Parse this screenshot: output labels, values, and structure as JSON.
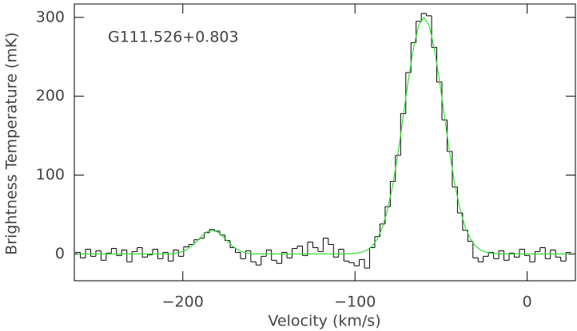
{
  "chart_data": {
    "type": "step",
    "xlabel": "Velocity (km/s)",
    "ylabel": "Brightness Temperature (mK)",
    "annotation": "G111.526+0.803",
    "xlim": [
      -263,
      28
    ],
    "ylim": [
      -34,
      317
    ],
    "xticks": [
      {
        "value": -200,
        "label": "−200"
      },
      {
        "value": -100,
        "label": "−100"
      },
      0
    ],
    "yticks": [
      0,
      100,
      200,
      300
    ],
    "x": [
      -261,
      -258,
      -255,
      -252,
      -249,
      -246,
      -243,
      -240,
      -237,
      -234,
      -231,
      -228,
      -225,
      -222,
      -219,
      -216,
      -213,
      -210,
      -207,
      -204,
      -201,
      -198,
      -195,
      -192,
      -189,
      -186,
      -183,
      -180,
      -177,
      -174,
      -171,
      -168,
      -165,
      -162,
      -159,
      -156,
      -153,
      -150,
      -147,
      -144,
      -141,
      -138,
      -135,
      -132,
      -129,
      -126,
      -123,
      -120,
      -117,
      -114,
      -111,
      -108,
      -105,
      -102,
      -99,
      -96,
      -93,
      -90,
      -87,
      -84,
      -81,
      -78,
      -75,
      -72,
      -69,
      -66,
      -63,
      -60,
      -57,
      -54,
      -51,
      -48,
      -45,
      -42,
      -39,
      -36,
      -33,
      -30,
      -27,
      -24,
      -21,
      -18,
      -15,
      -12,
      -9,
      -6,
      -3,
      0,
      3,
      6,
      9,
      12,
      15,
      18,
      21,
      24
    ],
    "series": [
      {
        "color": "#000000",
        "values": [
          2,
          -5,
          6,
          -3,
          4,
          -8,
          1,
          7,
          -2,
          5,
          -10,
          3,
          8,
          -4,
          -1,
          6,
          -6,
          2,
          -9,
          5,
          -3,
          9,
          12,
          18,
          20,
          27,
          31,
          29,
          24,
          17,
          8,
          2,
          -6,
          4,
          -10,
          -14,
          -3,
          5,
          -8,
          -12,
          2,
          -5,
          7,
          10,
          -2,
          15,
          8,
          3,
          20,
          12,
          -4,
          6,
          -9,
          -11,
          -15,
          -7,
          -18,
          8,
          22,
          38,
          60,
          92,
          125,
          178,
          230,
          268,
          295,
          305,
          302,
          262,
          218,
          170,
          130,
          85,
          52,
          30,
          16,
          -5,
          -10,
          -3,
          2,
          -6,
          4,
          -8,
          1,
          -4,
          6,
          -2,
          -10,
          3,
          8,
          -6,
          5,
          -4,
          -9,
          2
        ]
      },
      {
        "color": "#33dd33",
        "values": [
          0,
          0,
          0,
          0,
          0,
          0,
          0,
          0,
          0,
          0,
          0,
          0,
          0,
          0,
          0,
          0,
          0,
          0,
          0,
          1.0,
          2.4,
          5.2,
          9.7,
          15.9,
          22.6,
          28,
          30,
          28,
          22.6,
          15.9,
          9.7,
          5.2,
          2.4,
          1.0,
          0,
          0,
          0,
          0,
          0,
          0,
          0,
          0,
          0,
          0,
          0,
          0,
          0,
          0,
          0,
          0,
          0,
          0,
          0,
          0.4,
          1.0,
          2.2,
          4.9,
          10.0,
          19.1,
          34.0,
          56.7,
          88.1,
          128.1,
          174.1,
          220.9,
          261.8,
          289.9,
          300,
          289.9,
          261.8,
          220.9,
          174.1,
          128.1,
          88.1,
          56.7,
          34.0,
          19.1,
          10.0,
          4.9,
          2.2,
          1.0,
          0.4,
          0,
          0,
          0,
          0,
          0,
          0,
          0,
          0,
          0,
          0,
          0,
          0,
          0,
          0
        ]
      }
    ]
  }
}
